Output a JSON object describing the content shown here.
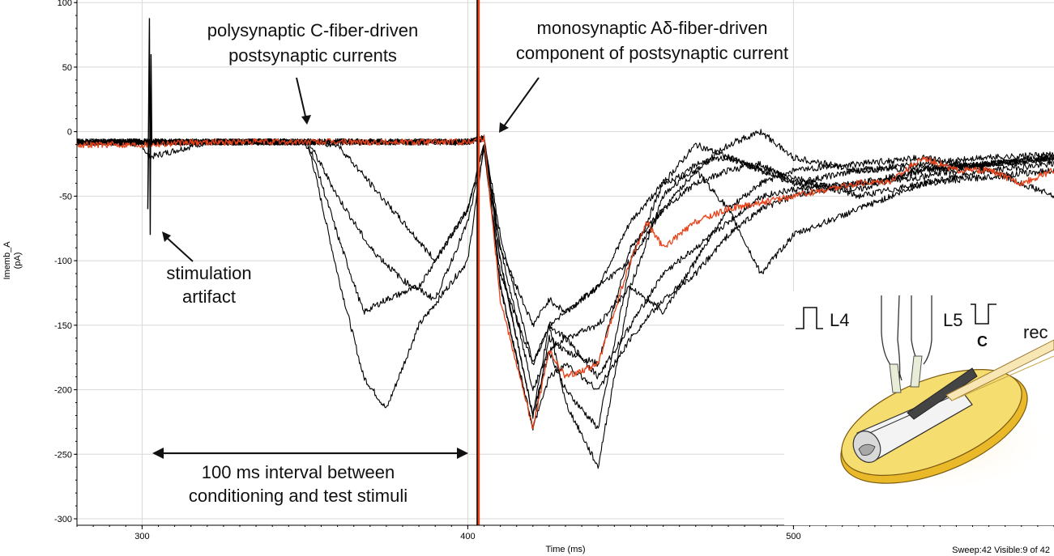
{
  "chart_data": {
    "type": "line",
    "title": "",
    "xlabel": "Time (ms)",
    "ylabel": "Imemb_A",
    "ylabel_unit": "(pA)",
    "xlim": [
      280,
      580
    ],
    "ylim": [
      -305,
      102
    ],
    "x_ticks": [
      300,
      400,
      500
    ],
    "y_ticks": [
      100,
      50,
      0,
      -50,
      -100,
      -150,
      -200,
      -250,
      -300
    ],
    "grid": true,
    "highlight_color": "#e8441c",
    "trace_color": "#000000",
    "stimulus_markers": [
      302,
      403
    ],
    "series": [
      {
        "highlight": false,
        "x": [
          280,
          300,
          302,
          320,
          350,
          352,
          360,
          368,
          375,
          385,
          400,
          405,
          410,
          420,
          425,
          430,
          440,
          450,
          460,
          470,
          480,
          490,
          500,
          520,
          540,
          560,
          580
        ],
        "y": [
          -8,
          -10,
          -20,
          -8,
          -8,
          -20,
          -110,
          -190,
          -215,
          -150,
          -100,
          -10,
          -120,
          -230,
          -160,
          -170,
          -180,
          -90,
          -60,
          -40,
          -30,
          -25,
          -40,
          -30,
          -28,
          -25,
          -22
        ]
      },
      {
        "highlight": false,
        "x": [
          280,
          300,
          320,
          350,
          352,
          360,
          368,
          375,
          385,
          400,
          405,
          410,
          420,
          425,
          430,
          440,
          450,
          460,
          470,
          480,
          490,
          500,
          520,
          540,
          560,
          580
        ],
        "y": [
          -8,
          -8,
          -8,
          -8,
          -15,
          -80,
          -140,
          -130,
          -120,
          -60,
          -10,
          -100,
          -220,
          -170,
          -200,
          -230,
          -100,
          -40,
          -10,
          -20,
          -30,
          -40,
          -45,
          -30,
          -25,
          -20
        ]
      },
      {
        "highlight": false,
        "x": [
          280,
          300,
          320,
          350,
          352,
          360,
          370,
          380,
          390,
          400,
          405,
          410,
          420,
          425,
          430,
          440,
          450,
          460,
          470,
          480,
          490,
          500,
          520,
          540,
          560,
          580
        ],
        "y": [
          -8,
          -8,
          -8,
          -8,
          -12,
          -50,
          -90,
          -115,
          -130,
          -70,
          -15,
          -110,
          -180,
          -150,
          -210,
          -260,
          -120,
          -50,
          -25,
          -20,
          -30,
          -35,
          -50,
          -40,
          -30,
          -25
        ]
      },
      {
        "highlight": false,
        "x": [
          280,
          300,
          320,
          350,
          360,
          380,
          390,
          400,
          405,
          410,
          420,
          425,
          430,
          440,
          450,
          460,
          470,
          480,
          490,
          500,
          520,
          540,
          560,
          580
        ],
        "y": [
          -8,
          -8,
          -8,
          -8,
          -10,
          -70,
          -100,
          -60,
          -10,
          -90,
          -150,
          -130,
          -140,
          -120,
          -70,
          -40,
          -30,
          -60,
          -110,
          -80,
          -60,
          -40,
          -35,
          -30
        ]
      },
      {
        "highlight": false,
        "x": [
          280,
          300,
          320,
          350,
          380,
          400,
          405,
          410,
          420,
          425,
          430,
          440,
          450,
          460,
          470,
          480,
          490,
          500,
          520,
          540,
          560,
          580
        ],
        "y": [
          -8,
          -8,
          -8,
          -8,
          -8,
          -8,
          -5,
          -100,
          -220,
          -150,
          -160,
          -190,
          -150,
          -110,
          -90,
          -70,
          -50,
          -45,
          -40,
          -30,
          -25,
          -20
        ]
      },
      {
        "highlight": false,
        "x": [
          280,
          300,
          320,
          350,
          380,
          400,
          405,
          410,
          420,
          425,
          430,
          440,
          450,
          460,
          470,
          480,
          490,
          500,
          520,
          540,
          560,
          580
        ],
        "y": [
          -8,
          -8,
          -8,
          -8,
          -8,
          -8,
          -5,
          -120,
          -230,
          -190,
          -180,
          -200,
          -160,
          -130,
          -110,
          -80,
          -60,
          -50,
          -40,
          -35,
          -25,
          -20
        ]
      },
      {
        "highlight": false,
        "x": [
          280,
          300,
          320,
          350,
          380,
          400,
          405,
          410,
          420,
          425,
          430,
          440,
          450,
          460,
          470,
          480,
          490,
          500,
          520,
          540,
          560,
          580
        ],
        "y": [
          -8,
          -8,
          -8,
          -8,
          -8,
          -8,
          -5,
          -90,
          -200,
          -170,
          -160,
          -150,
          -120,
          -140,
          -100,
          -60,
          -40,
          -30,
          -25,
          -20,
          -30,
          -50
        ]
      },
      {
        "highlight": false,
        "x": [
          280,
          300,
          320,
          350,
          380,
          400,
          405,
          410,
          420,
          425,
          430,
          440,
          450,
          460,
          470,
          480,
          490,
          500,
          520,
          540,
          560,
          580
        ],
        "y": [
          -8,
          -8,
          -8,
          -8,
          -8,
          -8,
          -5,
          -80,
          -180,
          -150,
          -140,
          -120,
          -100,
          -60,
          -30,
          -10,
          0,
          -20,
          -30,
          -25,
          -20,
          -18
        ]
      },
      {
        "highlight": true,
        "x": [
          280,
          300,
          320,
          350,
          380,
          400,
          405,
          410,
          420,
          425,
          430,
          440,
          450,
          455,
          460,
          470,
          480,
          490,
          500,
          510,
          520,
          530,
          540,
          550,
          560,
          570,
          580
        ],
        "y": [
          -10,
          -10,
          -8,
          -8,
          -8,
          -8,
          -5,
          -130,
          -230,
          -170,
          -190,
          -180,
          -100,
          -70,
          -90,
          -70,
          -60,
          -55,
          -50,
          -45,
          -40,
          -38,
          -20,
          -30,
          -30,
          -40,
          -30
        ]
      }
    ]
  },
  "annotations": {
    "c_fiber_line1": "polysynaptic C-fiber-driven",
    "c_fiber_line2": "postsynaptic currents",
    "a_delta_line1": "monosynaptic Aδ-fiber-driven",
    "a_delta_line2": "component of postsynaptic current",
    "artifact_line1": "stimulation",
    "artifact_line2": "artifact",
    "interval_line1": "100 ms interval between",
    "interval_line2": "conditioning and test stimuli"
  },
  "inset": {
    "label_l4": "L4",
    "label_l5": "L5",
    "label_c": "C",
    "label_rec": "rec",
    "disc_color": "#f2cf3d"
  },
  "status": {
    "sweep_text": "Sweep:42 Visible:9 of 42"
  }
}
